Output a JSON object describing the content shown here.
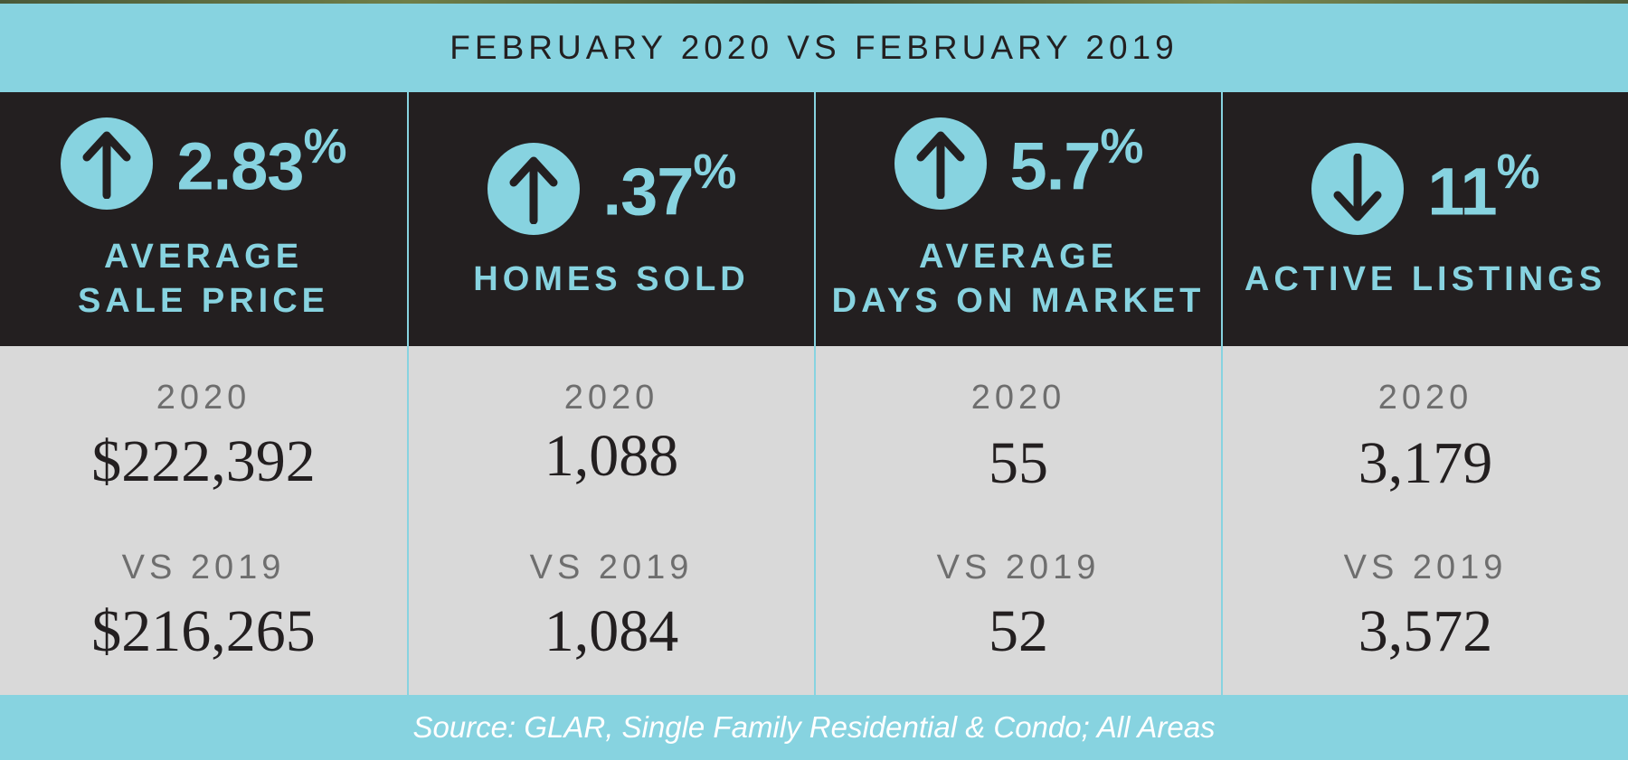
{
  "header": {
    "title": "FEBRUARY 2020 VS FEBRUARY 2019"
  },
  "colors": {
    "accent": "#87d3e0",
    "dark": "#231f20",
    "panel": "#d9d9d9",
    "muted": "#6e6e6e"
  },
  "stats": [
    {
      "direction": "up",
      "icon": "arrow-up-icon",
      "percent": "2.83",
      "percent_sign": "%",
      "label_line1": "AVERAGE",
      "label_line2": "SALE PRICE",
      "year_label": "2020",
      "value_2020": "$222,392",
      "vs_label": "VS 2019",
      "value_2019": "$216,265"
    },
    {
      "direction": "up",
      "icon": "arrow-up-icon",
      "percent": ".37",
      "percent_sign": "%",
      "label_line1": "HOMES SOLD",
      "label_line2": "",
      "year_label": "2020",
      "value_2020": "1,088",
      "vs_label": "VS 2019",
      "value_2019": "1,084"
    },
    {
      "direction": "up",
      "icon": "arrow-up-icon",
      "percent": "5.7",
      "percent_sign": "%",
      "label_line1": "AVERAGE",
      "label_line2": "DAYS ON MARKET",
      "year_label": "2020",
      "value_2020": "55",
      "vs_label": "VS 2019",
      "value_2019": "52"
    },
    {
      "direction": "down",
      "icon": "arrow-down-icon",
      "percent": "11",
      "percent_sign": "%",
      "label_line1": "ACTIVE LISTINGS",
      "label_line2": "",
      "year_label": "2020",
      "value_2020": "3,179",
      "vs_label": "VS 2019",
      "value_2019": "3,572"
    }
  ],
  "footer": {
    "source": "Source: GLAR, Single Family Residential & Condo; All Areas"
  }
}
